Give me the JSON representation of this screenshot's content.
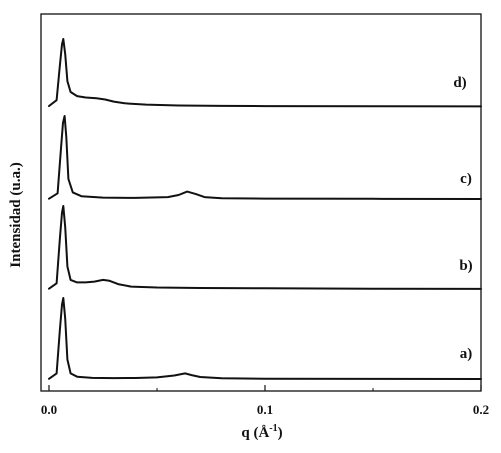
{
  "chart_data": {
    "type": "line",
    "xlabel": {
      "main": "q (Å",
      "sup": "-1",
      "end": ")"
    },
    "ylabel": "Intensidad (u.a.)",
    "xlim": [
      0.0,
      0.2
    ],
    "x_ticks": [
      0.0,
      0.1,
      0.2
    ],
    "x_tick_labels": [
      "0.0",
      "0.1",
      "0.2"
    ],
    "y_ticks_shown": false,
    "grid": false,
    "series": [
      {
        "name": "a)",
        "q": [
          0.0,
          0.0035,
          0.005,
          0.006,
          0.0066,
          0.0075,
          0.0085,
          0.01,
          0.013,
          0.02,
          0.03,
          0.04,
          0.05,
          0.058,
          0.063,
          0.066,
          0.07,
          0.08,
          0.1,
          0.15,
          0.2
        ],
        "y": [
          1.5,
          8,
          60,
          92,
          100,
          75,
          25,
          8,
          4,
          2.6,
          2.3,
          2.4,
          3.2,
          5.5,
          8,
          6,
          3.6,
          2.1,
          1.6,
          1.3,
          1.2
        ]
      },
      {
        "name": "b)",
        "q": [
          0.0,
          0.0035,
          0.005,
          0.006,
          0.0066,
          0.0075,
          0.0085,
          0.01,
          0.013,
          0.017,
          0.021,
          0.025,
          0.028,
          0.032,
          0.038,
          0.05,
          0.07,
          0.1,
          0.15,
          0.2
        ],
        "y": [
          1.5,
          8,
          60,
          92,
          100,
          75,
          28,
          12,
          9,
          9,
          10,
          12,
          11,
          7,
          4,
          3,
          2.4,
          2,
          1.6,
          1.3
        ]
      },
      {
        "name": "c)",
        "q": [
          0.0,
          0.004,
          0.0055,
          0.0065,
          0.0072,
          0.008,
          0.009,
          0.011,
          0.015,
          0.025,
          0.04,
          0.055,
          0.06,
          0.064,
          0.068,
          0.072,
          0.08,
          0.1,
          0.15,
          0.2
        ],
        "y": [
          1.5,
          8,
          60,
          92,
          100,
          75,
          25,
          9,
          4.5,
          2.8,
          2.5,
          3.5,
          6,
          10,
          7,
          3.4,
          2.1,
          1.7,
          1.4,
          1.2
        ]
      },
      {
        "name": "d)",
        "q": [
          0.0,
          0.0035,
          0.005,
          0.006,
          0.0066,
          0.0075,
          0.0085,
          0.01,
          0.013,
          0.017,
          0.022,
          0.026,
          0.03,
          0.035,
          0.045,
          0.06,
          0.08,
          0.1,
          0.15,
          0.2
        ],
        "y": [
          1.5,
          10,
          60,
          92,
          100,
          78,
          38,
          22,
          16,
          14,
          13,
          11,
          8,
          5.5,
          3.5,
          2.2,
          1.6,
          1.3,
          1.0,
          0.9
        ]
      }
    ]
  }
}
